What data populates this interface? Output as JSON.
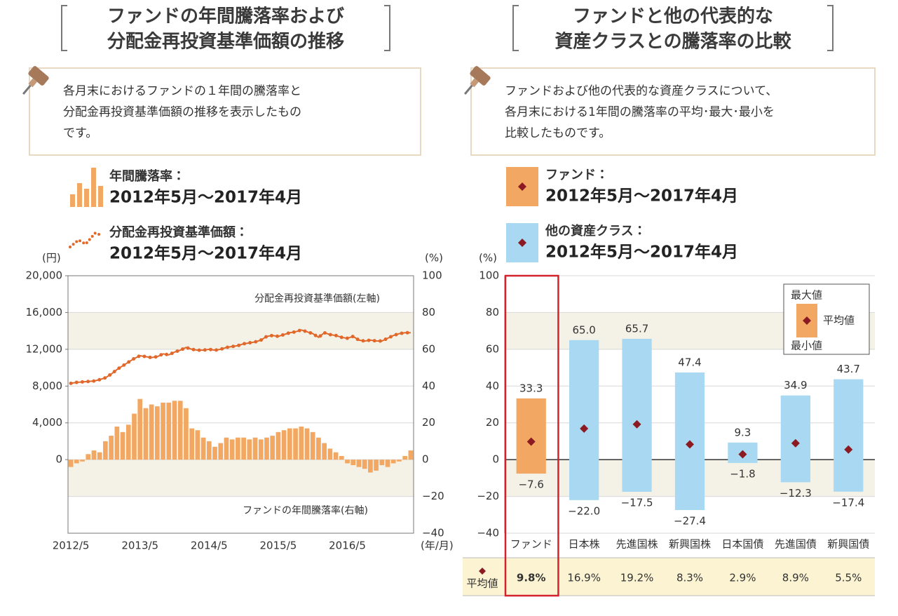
{
  "chart_data": [
    {
      "type": "combo",
      "title": [
        "ファンドの年間騰落率および",
        "分配金再投資基準価額の推移"
      ],
      "description": [
        "各月末におけるファンドの１年間の騰落率と",
        "分配金再投資基準価額の推移を表示したもの",
        "です。"
      ],
      "y_label": "(円)",
      "y2_label": "(%)",
      "x_label": "(年/月)",
      "categories": [
        "2012/5",
        null,
        null,
        null,
        null,
        null,
        null,
        null,
        null,
        null,
        null,
        null,
        "2013/5",
        null,
        null,
        null,
        null,
        null,
        null,
        null,
        null,
        null,
        null,
        null,
        "2014/5",
        null,
        null,
        null,
        null,
        null,
        null,
        null,
        null,
        null,
        null,
        null,
        "2015/5",
        null,
        null,
        null,
        null,
        null,
        null,
        null,
        null,
        null,
        null,
        null,
        "2016/5",
        null,
        null,
        null,
        null,
        null,
        null,
        null,
        null,
        null,
        null,
        null
      ],
      "series": [
        {
          "name": "年間騰落率：",
          "period": "2012年5月～2017年4月",
          "type": "bar",
          "axis": "y2",
          "color": "#f2a862",
          "values": [
            -4,
            -2,
            -1,
            3,
            5,
            4,
            10,
            13,
            18,
            15,
            19,
            25,
            33,
            28,
            30,
            29,
            31,
            31,
            32,
            32,
            28,
            17,
            16,
            12,
            10,
            7,
            9,
            12,
            11,
            12,
            12,
            11,
            12,
            11,
            12,
            13,
            15,
            16,
            17,
            17,
            18,
            17,
            15,
            12,
            9,
            6,
            4,
            2,
            -2,
            -3,
            -4,
            -5,
            -7,
            -6,
            -3,
            -4,
            -2,
            -1,
            2,
            5
          ]
        },
        {
          "name": "分配金再投資基準価額：",
          "period": "2012年5月～2017年4月",
          "type": "line",
          "color": "#e0682a",
          "values": [
            8300,
            8400,
            8450,
            8500,
            8550,
            8700,
            8900,
            9300,
            9800,
            10200,
            10600,
            11000,
            11300,
            11200,
            11100,
            11200,
            11500,
            11400,
            11700,
            11900,
            12200,
            12000,
            11900,
            11900,
            12000,
            11900,
            12000,
            12200,
            12300,
            12400,
            12600,
            12700,
            12800,
            13000,
            13400,
            13500,
            13400,
            13600,
            13800,
            13900,
            14100,
            13900,
            13700,
            13300,
            13800,
            13600,
            13500,
            13300,
            13200,
            13400,
            13000,
            12900,
            13000,
            12900,
            12900,
            13200,
            13500,
            13700,
            13800,
            13800
          ]
        }
      ],
      "annotations": [
        "分配金再投資基準価額(左軸)",
        "ファンドの年間騰落率(右軸)"
      ],
      "ylim": [
        -8000,
        20000
      ],
      "yticks": [
        0,
        {
          "value": 4000,
          "label": "4,000"
        },
        {
          "value": 8000,
          "label": "8,000"
        },
        {
          "value": 12000,
          "label": "12,000"
        },
        {
          "value": 16000,
          "label": "16,000"
        },
        {
          "value": 20000,
          "label": "20,000"
        }
      ],
      "y2lim": [
        -40,
        100
      ],
      "y2ticks": [
        {
          "value": -40,
          "label": "−40"
        },
        {
          "value": -20,
          "label": "−20"
        },
        0,
        20,
        40,
        60,
        80,
        100
      ]
    },
    {
      "type": "range",
      "title": [
        "ファンドと他の代表的な",
        "資産クラスとの騰落率の比較"
      ],
      "description": [
        "ファンドおよび他の代表的な資産クラスについて、",
        "各月末における1年間の騰落率の平均･最大･最小を",
        "比較したものです。"
      ],
      "groups": [
        {
          "name": "ファンド：",
          "period": "2012年5月～2017年4月",
          "color": "#f2a862"
        },
        {
          "name": "他の資産クラス：",
          "period": "2012年5月～2017年4月",
          "color": "#a8d8f2"
        }
      ],
      "y_label": "(%)",
      "categories": [
        "ファンド",
        "日本株",
        "先進国株",
        "新興国株",
        "日本国債",
        "先進国債",
        "新興国債"
      ],
      "max": {
        "values": [
          33.3,
          65.0,
          65.7,
          47.4,
          9.3,
          34.9,
          43.7
        ],
        "value_labels": [
          "33.3",
          "65.0",
          "65.7",
          "47.4",
          "9.3",
          "34.9",
          "43.7"
        ]
      },
      "min": {
        "values": [
          -7.6,
          -22.0,
          -17.5,
          -27.4,
          -1.8,
          -12.3,
          -17.4
        ],
        "value_labels": [
          "−7.6",
          "−22.0",
          "−17.5",
          "−27.4",
          "−1.8",
          "−12.3",
          "−17.4"
        ]
      },
      "mean": {
        "name": "平均値",
        "color": "#8b1a22",
        "values": [
          9.8,
          16.9,
          19.2,
          8.3,
          2.9,
          8.9,
          5.5
        ],
        "value_labels": [
          "9.8%",
          "16.9%",
          "19.2%",
          "8.3%",
          "2.9%",
          "8.9%",
          "5.5%"
        ]
      },
      "key": [
        "最大値",
        "平均値",
        "最小値"
      ],
      "ylim": [
        -40,
        100
      ],
      "yticks": [
        {
          "value": -40,
          "label": "−40"
        },
        {
          "value": -20,
          "label": "−20"
        },
        0,
        20,
        40,
        60,
        80,
        100
      ]
    }
  ]
}
